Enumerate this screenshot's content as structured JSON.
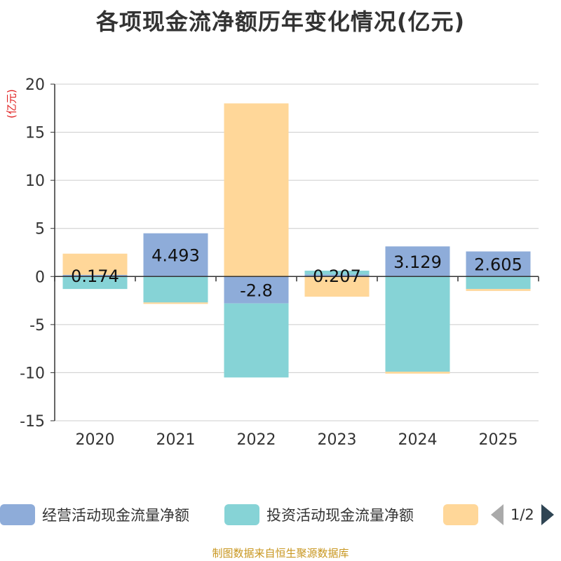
{
  "chart_data": {
    "type": "bar",
    "stacked": true,
    "title": "各项现金流净额历年变化情况(亿元)",
    "ylabel": "(亿元)",
    "xlabel": "",
    "ylim": [
      -15,
      20
    ],
    "yticks": [
      20,
      15,
      10,
      5,
      0,
      -5,
      -10,
      -15
    ],
    "grid": true,
    "categories": [
      "2020",
      "2021",
      "2022",
      "2023",
      "2024",
      "2025"
    ],
    "series": [
      {
        "name": "经营活动现金流量净额",
        "color": "#8eacd9",
        "values": [
          0.174,
          4.493,
          -2.8,
          0.207,
          3.129,
          2.605
        ],
        "labels": [
          "0.174",
          "4.493",
          "-2.8",
          "0.207",
          "3.129",
          "2.605"
        ]
      },
      {
        "name": "投资活动现金流量净额",
        "color": "#86d3d6",
        "values": [
          -1.3,
          -2.7,
          -7.7,
          0.4,
          -9.9,
          -1.3
        ]
      },
      {
        "name": "",
        "color": "#ffd799",
        "values": [
          2.2,
          -0.15,
          18.0,
          -2.1,
          -0.2,
          -0.2
        ]
      }
    ]
  },
  "legend": {
    "items": [
      {
        "label": "经营活动现金流量净额",
        "color": "#8eacd9"
      },
      {
        "label": "投资活动现金流量净额",
        "color": "#86d3d6"
      },
      {
        "label": "",
        "color": "#ffd799"
      }
    ],
    "page_text": "1/2"
  },
  "footer": {
    "source": "制图数据来自恒生聚源数据库"
  }
}
